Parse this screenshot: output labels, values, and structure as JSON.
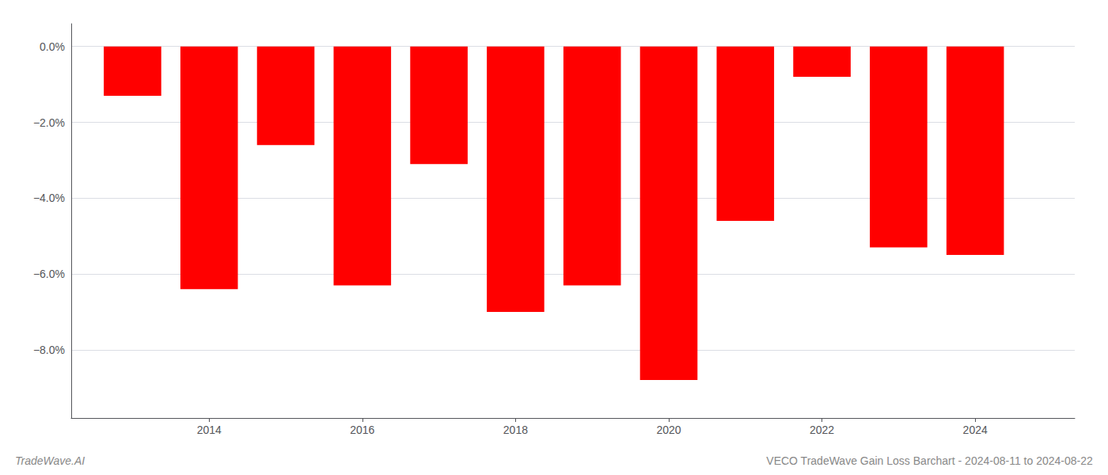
{
  "chart_data": {
    "type": "bar",
    "title": "VECO TradeWave Gain Loss Barchart - 2024-08-11 to 2024-08-22",
    "annotations": [
      "TradeWave.AI"
    ],
    "x": [
      2013,
      2014,
      2015,
      2016,
      2017,
      2018,
      2019,
      2020,
      2021,
      2022,
      2023,
      2024
    ],
    "values": [
      -1.3,
      -6.4,
      -2.6,
      -6.3,
      -3.1,
      -7.0,
      -6.3,
      -8.8,
      -4.6,
      -0.8,
      -5.3,
      -5.5
    ],
    "color": "#ff0000",
    "xlim": [
      2012.2,
      2025.3
    ],
    "xticks": [
      2014,
      2016,
      2018,
      2020,
      2022,
      2024
    ],
    "ylim": [
      -9.8,
      0.6
    ],
    "yticks": [
      {
        "value": 0.0,
        "label": "0.0%"
      },
      {
        "value": -2.0,
        "label": "−2.0%"
      },
      {
        "value": -4.0,
        "label": "−4.0%"
      },
      {
        "value": -6.0,
        "label": "−6.0%"
      },
      {
        "value": -8.0,
        "label": "−8.0%"
      }
    ],
    "grid": true
  }
}
